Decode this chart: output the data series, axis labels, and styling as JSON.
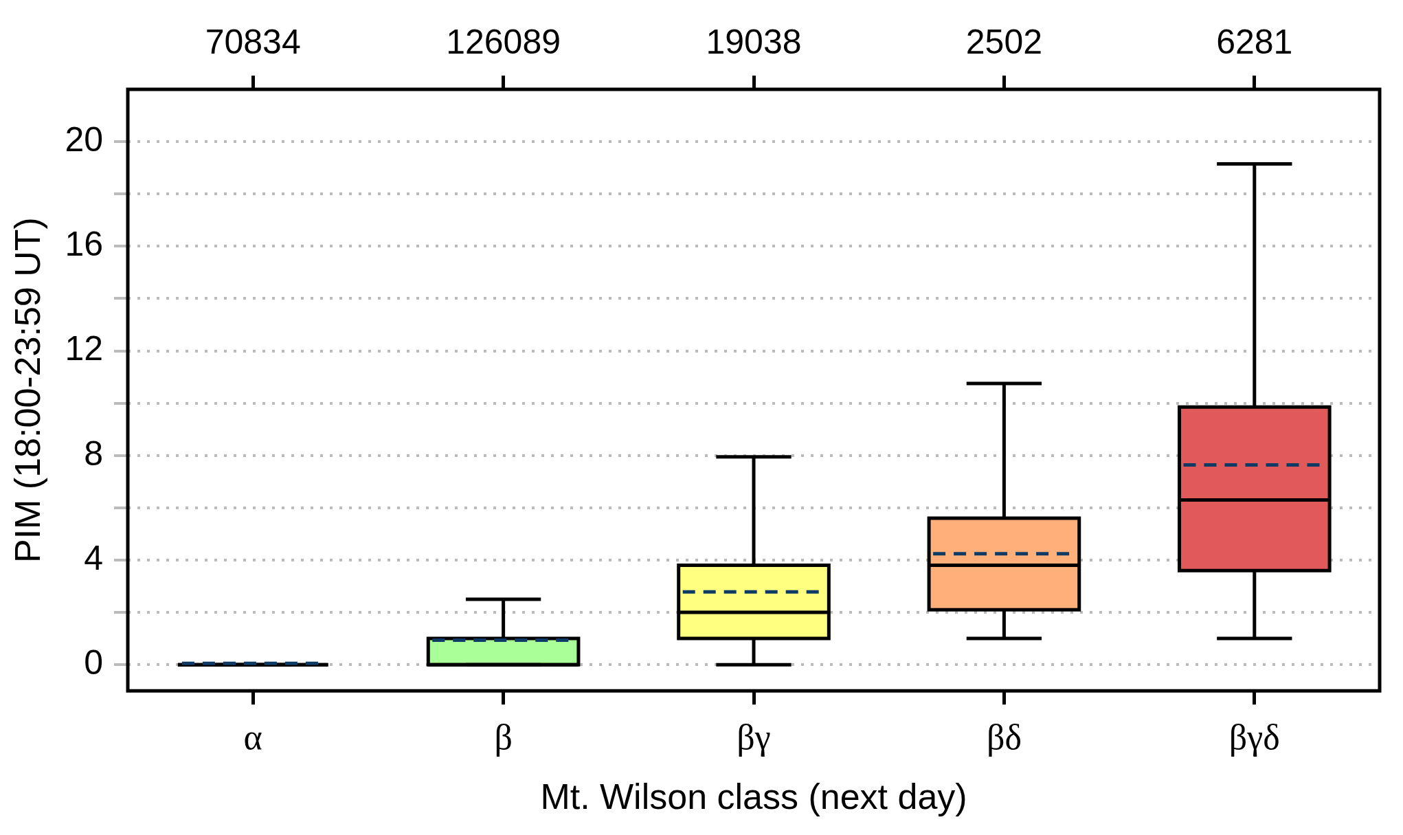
{
  "chart_data": {
    "type": "box",
    "xlabel": "Mt. Wilson class (next day)",
    "ylabel": "PIM (18:00-23:59 UT)",
    "categories": [
      "α",
      "β",
      "βγ",
      "βδ",
      "βγδ"
    ],
    "colors": [
      null,
      "#aaff99",
      "#ffff80",
      "#ffb07a",
      "#e05a5a"
    ],
    "boxes": [
      {
        "low": 0,
        "q1": 0,
        "median": 0,
        "q3": 0,
        "high": 0,
        "mean": 0.05
      },
      {
        "low": 0,
        "q1": 0,
        "median": 0,
        "q3": 1.0,
        "high": 2.5,
        "mean": 0.94
      },
      {
        "low": 0,
        "q1": 1.0,
        "median": 2.0,
        "q3": 3.8,
        "high": 7.95,
        "mean": 2.78
      },
      {
        "low": 1.0,
        "q1": 2.1,
        "median": 3.8,
        "q3": 5.6,
        "high": 10.75,
        "mean": 4.24
      },
      {
        "low": 1.0,
        "q1": 3.6,
        "median": 6.3,
        "q3": 9.85,
        "high": 19.15,
        "mean": 7.64
      }
    ],
    "ylim": [
      -1,
      22
    ],
    "yticks": [
      0,
      {
        "value": 2,
        "label": null
      },
      4,
      {
        "value": 6,
        "label": null
      },
      8,
      {
        "value": 10,
        "label": null
      },
      12,
      {
        "value": 14,
        "label": null
      },
      16,
      {
        "value": 18,
        "label": null
      },
      20
    ],
    "grid": "y",
    "annotations": [
      "70834",
      "126089",
      "19038",
      "2502",
      "6281"
    ]
  }
}
